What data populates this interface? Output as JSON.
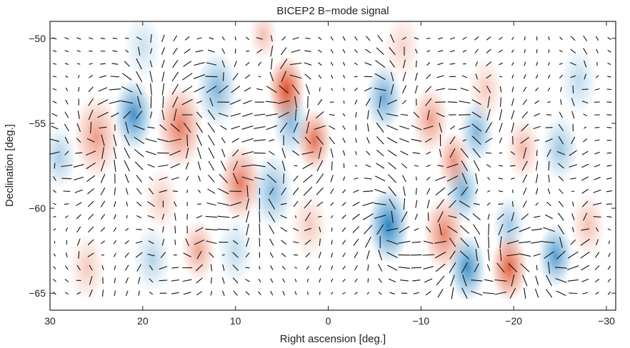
{
  "chart_data": {
    "type": "heatmap",
    "title": "BICEP2 B−mode signal",
    "xlabel": "Right ascension [deg.]",
    "ylabel": "Declination [deg.]",
    "xlim": [
      30,
      -31
    ],
    "ylim": [
      -66,
      -49
    ],
    "x_ticks": [
      30,
      20,
      10,
      0,
      -10,
      -20,
      -30
    ],
    "x_tick_labels": [
      "30",
      "20",
      "10",
      "0",
      "−10",
      "−20",
      "−30"
    ],
    "y_ticks": [
      -50,
      -55,
      -60,
      -65
    ],
    "y_tick_labels": [
      "−50",
      "−55",
      "−60",
      "−65"
    ],
    "colors": {
      "positive": "#e0502c",
      "negative": "#2d86c4",
      "vector": "#111111"
    },
    "hot_spots": [
      {
        "x": 25,
        "y": -55.8,
        "amp": 0.55,
        "r": 2.0
      },
      {
        "x": 16,
        "y": -55.2,
        "amp": 0.75,
        "r": 2.0
      },
      {
        "x": 9.5,
        "y": -58.5,
        "amp": 0.75,
        "r": 1.8
      },
      {
        "x": 4.5,
        "y": -53.0,
        "amp": 1.0,
        "r": 1.6
      },
      {
        "x": 1.5,
        "y": -56.0,
        "amp": 0.8,
        "r": 1.5
      },
      {
        "x": -11,
        "y": -54.8,
        "amp": 0.55,
        "r": 1.6
      },
      {
        "x": -13.5,
        "y": -57.2,
        "amp": 0.6,
        "r": 1.4
      },
      {
        "x": -12.5,
        "y": -61.5,
        "amp": 0.7,
        "r": 1.8
      },
      {
        "x": -19.5,
        "y": -63.5,
        "amp": 0.9,
        "r": 1.6
      },
      {
        "x": -21,
        "y": -56.5,
        "amp": 0.4,
        "r": 1.5
      },
      {
        "x": 14,
        "y": -62.5,
        "amp": 0.5,
        "r": 1.5
      },
      {
        "x": 26,
        "y": -63.5,
        "amp": 0.3,
        "r": 1.6
      },
      {
        "x": 18,
        "y": -59.5,
        "amp": 0.3,
        "r": 1.5
      },
      {
        "x": -8,
        "y": -50.5,
        "amp": 0.25,
        "r": 1.6
      },
      {
        "x": 2,
        "y": -61,
        "amp": 0.3,
        "r": 1.6
      },
      {
        "x": -28,
        "y": -61,
        "amp": 0.35,
        "r": 1.5
      },
      {
        "x": -17,
        "y": -53,
        "amp": 0.3,
        "r": 1.5
      },
      {
        "x": 7,
        "y": -49.8,
        "amp": 0.35,
        "r": 1.2
      }
    ],
    "cold_spots": [
      {
        "x": 21,
        "y": -54.5,
        "amp": 0.9,
        "r": 1.7
      },
      {
        "x": 12,
        "y": -53.0,
        "amp": 0.6,
        "r": 1.8
      },
      {
        "x": 4,
        "y": -55.0,
        "amp": 0.55,
        "r": 1.6
      },
      {
        "x": 6,
        "y": -59.0,
        "amp": 0.55,
        "r": 1.8
      },
      {
        "x": -6,
        "y": -53.5,
        "amp": 0.7,
        "r": 1.6
      },
      {
        "x": -6.5,
        "y": -61.0,
        "amp": 1.0,
        "r": 1.8
      },
      {
        "x": -14.5,
        "y": -59.0,
        "amp": 0.65,
        "r": 1.5
      },
      {
        "x": -15,
        "y": -63.5,
        "amp": 0.9,
        "r": 1.6
      },
      {
        "x": -24.5,
        "y": -62.8,
        "amp": 0.8,
        "r": 1.5
      },
      {
        "x": -16,
        "y": -55.5,
        "amp": 0.6,
        "r": 1.5
      },
      {
        "x": -19.5,
        "y": -61,
        "amp": 0.45,
        "r": 1.4
      },
      {
        "x": 29,
        "y": -57,
        "amp": 0.4,
        "r": 1.5
      },
      {
        "x": 19,
        "y": -63,
        "amp": 0.35,
        "r": 1.6
      },
      {
        "x": -25,
        "y": -56.5,
        "amp": 0.45,
        "r": 1.6
      },
      {
        "x": 10,
        "y": -62.5,
        "amp": 0.3,
        "r": 1.6
      },
      {
        "x": 20,
        "y": -50.5,
        "amp": 0.25,
        "r": 1.6
      },
      {
        "x": -27,
        "y": -52.5,
        "amp": 0.3,
        "r": 1.6
      }
    ]
  }
}
